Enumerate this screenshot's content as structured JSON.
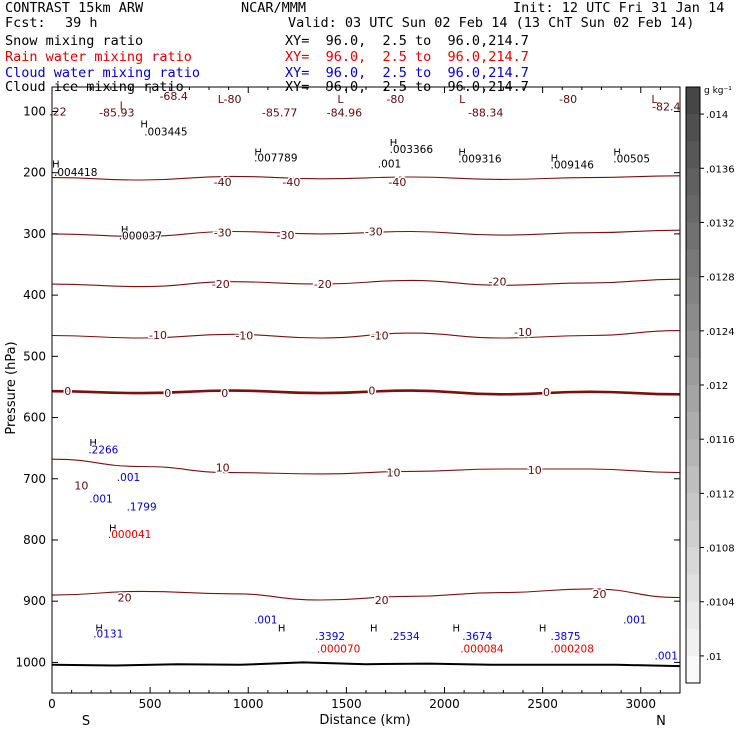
{
  "header": {
    "model": "CONTRAST 15km ARW",
    "org": "NCAR/MMM",
    "init": "Init: 12 UTC Fri 31 Jan 14",
    "fcst_label": "Fcst:",
    "fcst_value": "39 h",
    "valid": "Valid: 03 UTC Sun 02 Feb 14 (13 ChT Sun 02 Feb 14)",
    "fields": [
      {
        "name": "Snow mixing ratio",
        "color": "#000000",
        "xy": "XY=  96.0,  2.5 to  96.0,214.7"
      },
      {
        "name": "Rain water mixing ratio",
        "color": "#e00000",
        "xy": "XY=  96.0,  2.5 to  96.0,214.7"
      },
      {
        "name": "Cloud water mixing ratio",
        "color": "#0000cc",
        "xy": "XY=  96.0,  2.5 to  96.0,214.7"
      },
      {
        "name": "Cloud ice mixing ratio",
        "color": "#000000",
        "xy": "XY=  96.0,  2.5 to  96.0,214.7"
      }
    ]
  },
  "colorbar": {
    "unit": "g kg⁻¹",
    "labels": [
      ".014",
      ".0136",
      ".0132",
      ".0128",
      ".0124",
      ".012",
      ".0116",
      ".0112",
      ".0108",
      ".0104",
      ".01"
    ],
    "label_values": [
      0.014,
      0.0136,
      0.0132,
      0.0128,
      0.0124,
      0.012,
      0.0116,
      0.0112,
      0.0108,
      0.0104,
      0.01
    ],
    "range": [
      0.0098,
      0.0142
    ]
  },
  "chart_data": {
    "type": "contour",
    "xlabel": "Distance (km)",
    "ylabel": "Pressure (hPa)",
    "xlim": [
      0,
      3200
    ],
    "ylim": [
      1050,
      60
    ],
    "x_ticks": [
      0,
      500,
      1000,
      1500,
      2000,
      2500,
      3000
    ],
    "x_tick_labels": [
      "0",
      "500",
      "1000",
      "1500",
      "2000",
      "2500",
      "3000"
    ],
    "y_ticks": [
      100,
      200,
      300,
      400,
      500,
      600,
      700,
      800,
      900,
      1000
    ],
    "y_tick_labels": [
      "100",
      "200",
      "300",
      "400",
      "500",
      "600",
      "700",
      "800",
      "900",
      "1000"
    ],
    "end_labels": {
      "left": "S",
      "right": "N"
    },
    "temperature_contours": [
      {
        "value": -40,
        "label": "-40",
        "pressure": [
          208,
          212,
          206,
          210,
          207,
          211,
          208,
          205
        ]
      },
      {
        "value": -30,
        "label": "-30",
        "pressure": [
          300,
          304,
          296,
          300,
          296,
          302,
          298,
          294
        ]
      },
      {
        "value": -20,
        "label": "-20",
        "pressure": [
          382,
          386,
          378,
          382,
          376,
          384,
          380,
          374
        ]
      },
      {
        "value": -10,
        "label": "-10",
        "pressure": [
          466,
          470,
          464,
          470,
          462,
          470,
          466,
          458
        ]
      },
      {
        "value": 0,
        "label": "0",
        "pressure": [
          557,
          560,
          556,
          560,
          556,
          562,
          558,
          562
        ]
      },
      {
        "value": 10,
        "label": "10",
        "pressure": [
          668,
          680,
          690,
          692,
          688,
          684,
          684,
          690
        ]
      },
      {
        "value": 20,
        "label": "20",
        "pressure": [
          890,
          884,
          888,
          898,
          892,
          886,
          880,
          894
        ]
      }
    ],
    "contour_labels": [
      {
        "text": "-68.4",
        "x": 620,
        "p": 75
      },
      {
        "text": "-85.93",
        "x": 330,
        "p": 102
      },
      {
        "text": "-85.77",
        "x": 1160,
        "p": 102
      },
      {
        "text": "-84.96",
        "x": 1490,
        "p": 102
      },
      {
        "text": "-88.34",
        "x": 2210,
        "p": 102
      },
      {
        "text": "-82.4",
        "x": 3130,
        "p": 92
      },
      {
        "text": "-80",
        "x": 920,
        "p": 80
      },
      {
        "text": "-80",
        "x": 1750,
        "p": 80
      },
      {
        "text": "-80",
        "x": 2630,
        "p": 80
      },
      {
        "text": ".22",
        "x": 30,
        "p": 100
      },
      {
        "text": "-40",
        "x": 870,
        "p": 215
      },
      {
        "text": "-40",
        "x": 1220,
        "p": 215
      },
      {
        "text": "-40",
        "x": 1760,
        "p": 215
      },
      {
        "text": "-30",
        "x": 870,
        "p": 298
      },
      {
        "text": "-30",
        "x": 1190,
        "p": 302
      },
      {
        "text": "-30",
        "x": 1640,
        "p": 296
      },
      {
        "text": "-20",
        "x": 860,
        "p": 382
      },
      {
        "text": "-20",
        "x": 1380,
        "p": 382
      },
      {
        "text": "-20",
        "x": 2270,
        "p": 378
      },
      {
        "text": "-10",
        "x": 540,
        "p": 465
      },
      {
        "text": "-10",
        "x": 980,
        "p": 466
      },
      {
        "text": "-10",
        "x": 1670,
        "p": 466
      },
      {
        "text": "-10",
        "x": 2400,
        "p": 460
      },
      {
        "text": "0",
        "x": 80,
        "p": 557
      },
      {
        "text": "0",
        "x": 590,
        "p": 560
      },
      {
        "text": "0",
        "x": 880,
        "p": 560
      },
      {
        "text": "0",
        "x": 1630,
        "p": 556
      },
      {
        "text": "0",
        "x": 2520,
        "p": 558
      },
      {
        "text": "10",
        "x": 870,
        "p": 682
      },
      {
        "text": "10",
        "x": 1740,
        "p": 690
      },
      {
        "text": "10",
        "x": 2460,
        "p": 686
      },
      {
        "text": "10",
        "x": 150,
        "p": 711
      },
      {
        "text": "20",
        "x": 370,
        "p": 894
      },
      {
        "text": "20",
        "x": 1680,
        "p": 898
      },
      {
        "text": "20",
        "x": 2790,
        "p": 888
      }
    ],
    "maxima": [
      {
        "text": ".003445",
        "x": 470,
        "p": 133,
        "color": "#000000"
      },
      {
        "text": ".004418",
        "x": 10,
        "p": 199,
        "color": "#000000"
      },
      {
        "text": ".007789",
        "x": 1030,
        "p": 175,
        "color": "#000000"
      },
      {
        "text": ".003366",
        "x": 1720,
        "p": 161,
        "color": "#000000"
      },
      {
        "text": ".001",
        "x": 1660,
        "p": 185,
        "color": "#000000"
      },
      {
        "text": ".009316",
        "x": 2070,
        "p": 177,
        "color": "#000000"
      },
      {
        "text": ".009146",
        "x": 2540,
        "p": 187,
        "color": "#000000"
      },
      {
        "text": ".00505",
        "x": 2860,
        "p": 177,
        "color": "#000000"
      },
      {
        "text": ".000037",
        "x": 340,
        "p": 303,
        "color": "#000000"
      },
      {
        "text": ".2266",
        "x": 185,
        "p": 652,
        "color": "#0000cc"
      },
      {
        "text": ".001",
        "x": 330,
        "p": 697,
        "color": "#0000cc"
      },
      {
        "text": ".001",
        "x": 190,
        "p": 732,
        "color": "#0000cc"
      },
      {
        "text": ".1799",
        "x": 380,
        "p": 745,
        "color": "#0000cc"
      },
      {
        "text": ".000041",
        "x": 285,
        "p": 790,
        "color": "#e00000"
      },
      {
        "text": ".0131",
        "x": 210,
        "p": 953,
        "color": "#0000cc"
      },
      {
        "text": ".001",
        "x": 1030,
        "p": 930,
        "color": "#0000cc"
      },
      {
        "text": ".3392",
        "x": 1340,
        "p": 957,
        "color": "#0000cc"
      },
      {
        "text": ".000070",
        "x": 1350,
        "p": 977,
        "color": "#e00000"
      },
      {
        "text": ".2534",
        "x": 1720,
        "p": 957,
        "color": "#0000cc"
      },
      {
        "text": ".3674",
        "x": 2090,
        "p": 957,
        "color": "#0000cc"
      },
      {
        "text": ".000084",
        "x": 2080,
        "p": 977,
        "color": "#e00000"
      },
      {
        "text": ".3875",
        "x": 2540,
        "p": 957,
        "color": "#0000cc"
      },
      {
        "text": ".000208",
        "x": 2540,
        "p": 977,
        "color": "#e00000"
      },
      {
        "text": ".001",
        "x": 2910,
        "p": 930,
        "color": "#0000cc"
      },
      {
        "text": ".001",
        "x": 3070,
        "p": 989,
        "color": "#0000cc"
      }
    ],
    "highs": [
      {
        "x": 470,
        "p": 120
      },
      {
        "x": 20,
        "p": 185
      },
      {
        "x": 1050,
        "p": 165
      },
      {
        "x": 1740,
        "p": 150
      },
      {
        "x": 2090,
        "p": 165
      },
      {
        "x": 2560,
        "p": 175
      },
      {
        "x": 2880,
        "p": 165
      },
      {
        "x": 370,
        "p": 292
      },
      {
        "x": 210,
        "p": 640
      },
      {
        "x": 310,
        "p": 780
      },
      {
        "x": 240,
        "p": 943
      },
      {
        "x": 1170,
        "p": 943
      },
      {
        "x": 1640,
        "p": 943
      },
      {
        "x": 2060,
        "p": 943
      },
      {
        "x": 2500,
        "p": 943
      }
    ],
    "lows": [
      {
        "x": 360,
        "p": 90
      },
      {
        "x": 860,
        "p": 80
      },
      {
        "x": 1470,
        "p": 80
      },
      {
        "x": 2090,
        "p": 80
      },
      {
        "x": 3070,
        "p": 80
      }
    ],
    "terrain_pressure": [
      1004,
      1005,
      1003,
      1004,
      1000,
      1003,
      1002,
      1004,
      1004,
      1004,
      1006
    ]
  }
}
